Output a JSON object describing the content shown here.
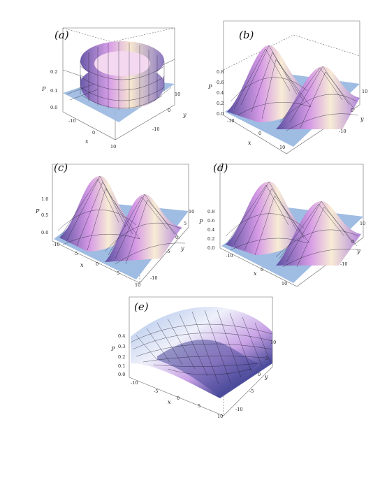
{
  "figure": {
    "panels": [
      {
        "id": "a",
        "label": "(a)",
        "shape": "ring",
        "axes": {
          "xlabel": "x",
          "ylabel": "y",
          "zlabel": "P"
        },
        "x_ticks": [
          "-10",
          "0",
          "10"
        ],
        "y_ticks": [
          "10",
          "0",
          "-10"
        ],
        "z_ticks": [
          "0.2",
          "0.1",
          "0.0"
        ],
        "colors": {
          "light": "#f6e6cf",
          "mid": "#d8a0e8",
          "dark": "#6a5aa8",
          "base": "#9ab8e0"
        }
      },
      {
        "id": "b",
        "label": "(b)",
        "shape": "two-peaks",
        "axes": {
          "xlabel": "x",
          "ylabel": "y",
          "zlabel": "P"
        },
        "x_ticks": [
          "-10",
          "0",
          "10"
        ],
        "y_ticks": [
          "10",
          "0",
          "-10"
        ],
        "z_ticks": [
          "0.8",
          "0.6",
          "0.4",
          "0.2",
          "0.0"
        ],
        "colors": {
          "light": "#f8ecd5",
          "mid": "#d69ae6",
          "dark": "#5a4fa0",
          "base": "#9ab8e0"
        }
      },
      {
        "id": "c",
        "label": "(c)",
        "shape": "two-peaks",
        "axes": {
          "xlabel": "x",
          "ylabel": "y",
          "zlabel": "P"
        },
        "x_ticks": [
          "-10",
          "-5",
          "0",
          "5",
          "10"
        ],
        "y_ticks": [
          "10",
          "5",
          "0",
          "-5",
          "-10"
        ],
        "z_ticks": [
          "1.0",
          "0.5",
          "0.0"
        ],
        "colors": {
          "light": "#f8ecd5",
          "mid": "#d69ae6",
          "dark": "#5a4fa0",
          "base": "#9ab8e0"
        }
      },
      {
        "id": "d",
        "label": "(d)",
        "shape": "two-peaks",
        "axes": {
          "xlabel": "x",
          "ylabel": "y",
          "zlabel": "P"
        },
        "x_ticks": [
          "-10",
          "0",
          "10"
        ],
        "y_ticks": [
          "10",
          "0",
          "-10"
        ],
        "z_ticks": [
          "0.8",
          "0.6",
          "0.4",
          "0.2",
          "0.0"
        ],
        "colors": {
          "light": "#f8ecd5",
          "mid": "#d69ae6",
          "dark": "#5a4fa0",
          "base": "#9ab8e0"
        }
      },
      {
        "id": "e",
        "label": "(e)",
        "shape": "ridge",
        "axes": {
          "xlabel": "x",
          "ylabel": "y",
          "zlabel": "P"
        },
        "x_ticks": [
          "-10",
          "-5",
          "0",
          "5",
          "10"
        ],
        "y_ticks": [
          "10",
          "5",
          "0",
          "-5",
          "-10"
        ],
        "z_ticks": [
          "0.4",
          "0.3",
          "0.2",
          "0.1",
          "0.0"
        ],
        "colors": {
          "light": "#eef0fa",
          "mid": "#c9a2e6",
          "dark": "#4a4a9a",
          "base": "#a8c0e8"
        }
      }
    ]
  }
}
